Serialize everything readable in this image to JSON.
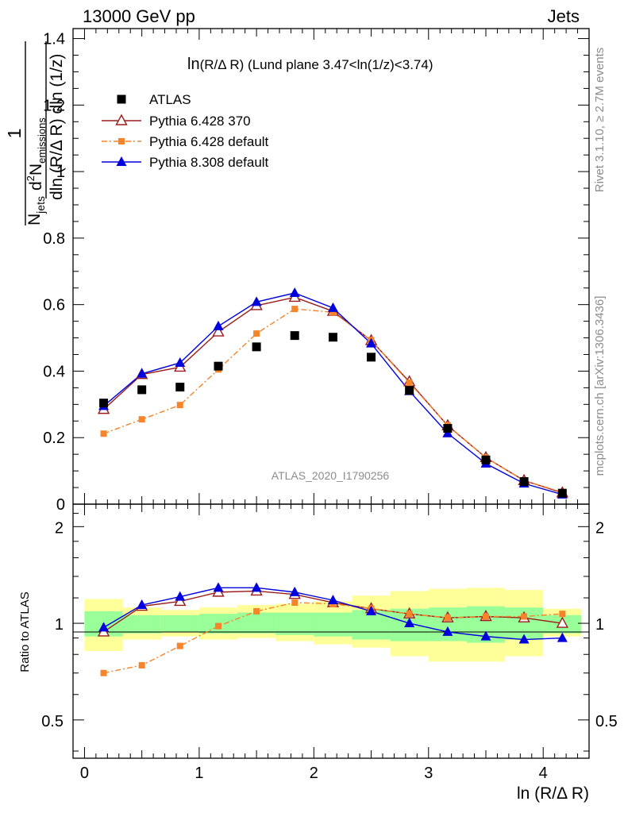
{
  "header": {
    "left": "13000 GeV pp",
    "right": "Jets"
  },
  "watermark": {
    "analysis": "ATLAS_2020_I1790256",
    "rivet": "Rivet 3.1.10, ≥ 2.7M events",
    "mcplots": "mcplots.cern.ch [arXiv:1306.3436]"
  },
  "chart_data": {
    "type": "scatter",
    "title": "ln(R/Δ R) (Lund plane 3.47<ln(1/z)<3.74)",
    "title_main": "ln",
    "title_rest": "(R/Δ R) (Lund plane 3.47<ln(1/z)<3.74)",
    "xlabel": "ln (R/Δ R)",
    "ylabel": "1/N_jets d²N_emissions/dln(R/Δ R) dln(1/z)",
    "ylabel_parts": {
      "one": "1",
      "njets_base": "N",
      "njets_sub": "jets",
      "d2": "d",
      "two": "2",
      "nemis": "N",
      "nemis_sub": "emissions",
      "denom_rest": "dln (R/Δ R) dln (1/z)"
    },
    "ratio_ylabel": "Ratio to ATLAS",
    "xlim": [
      -0.1,
      4.4
    ],
    "ylim": [
      0,
      1.43
    ],
    "ratio_ylim": [
      0.38,
      2.35
    ],
    "x_ticks": [
      {
        "v": 0,
        "label": "0"
      },
      {
        "v": 1,
        "label": "1"
      },
      {
        "v": 2,
        "label": "2"
      },
      {
        "v": 3,
        "label": "3"
      },
      {
        "v": 4,
        "label": "4"
      }
    ],
    "y_ticks": [
      {
        "v": 0,
        "label": "0"
      },
      {
        "v": 0.2,
        "label": "0.2"
      },
      {
        "v": 0.4,
        "label": "0.4"
      },
      {
        "v": 0.6,
        "label": "0.6"
      },
      {
        "v": 0.8,
        "label": "0.8"
      },
      {
        "v": 1.0,
        "label": "1"
      },
      {
        "v": 1.2,
        "label": "1.2"
      },
      {
        "v": 1.4,
        "label": "1.4"
      }
    ],
    "ratio_ticks": [
      {
        "v": 0.5,
        "label": "0.5"
      },
      {
        "v": 1,
        "label": "1"
      },
      {
        "v": 2,
        "label": "2"
      }
    ],
    "bin_edges": [
      0,
      0.333,
      0.667,
      1.0,
      1.333,
      1.667,
      2.0,
      2.333,
      2.667,
      3.0,
      3.333,
      3.667,
      4.0,
      4.333
    ],
    "x": [
      0.167,
      0.5,
      0.833,
      1.167,
      1.5,
      1.833,
      2.167,
      2.5,
      2.833,
      3.167,
      3.5,
      3.833,
      4.167
    ],
    "band_inner": [
      [
        0.91,
        1.09
      ],
      [
        0.93,
        1.06
      ],
      [
        0.94,
        1.06
      ],
      [
        0.93,
        1.07
      ],
      [
        0.93,
        1.08
      ],
      [
        0.92,
        1.08
      ],
      [
        0.91,
        1.08
      ],
      [
        0.89,
        1.1
      ],
      [
        0.88,
        1.11
      ],
      [
        0.88,
        1.12
      ],
      [
        0.87,
        1.13
      ],
      [
        0.89,
        1.12
      ],
      [
        0.93,
        1.06
      ]
    ],
    "band_outer": [
      [
        0.82,
        1.19
      ],
      [
        0.89,
        1.12
      ],
      [
        0.91,
        1.1
      ],
      [
        0.89,
        1.12
      ],
      [
        0.9,
        1.14
      ],
      [
        0.88,
        1.15
      ],
      [
        0.86,
        1.17
      ],
      [
        0.84,
        1.22
      ],
      [
        0.79,
        1.26
      ],
      [
        0.76,
        1.28
      ],
      [
        0.76,
        1.29
      ],
      [
        0.79,
        1.27
      ],
      [
        0.91,
        1.11
      ]
    ],
    "series": [
      {
        "name": "ATLAS",
        "color": "#000000",
        "marker": "square",
        "line": "none",
        "values": [
          0.304,
          0.344,
          0.352,
          0.415,
          0.473,
          0.507,
          0.502,
          0.442,
          0.342,
          0.228,
          0.133,
          0.068,
          0.033
        ],
        "ratio": [
          1,
          1,
          1,
          1,
          1,
          1,
          1,
          1,
          1,
          1,
          1,
          1,
          1
        ]
      },
      {
        "name": "Pythia 6.428 370",
        "color": "#9b1b1b",
        "marker": "triangle-open",
        "line": "solid",
        "values": [
          0.285,
          0.39,
          0.412,
          0.518,
          0.597,
          0.622,
          0.58,
          0.492,
          0.368,
          0.236,
          0.14,
          0.071,
          0.034
        ],
        "ratio": [
          0.94,
          1.13,
          1.17,
          1.25,
          1.26,
          1.23,
          1.16,
          1.11,
          1.07,
          1.04,
          1.05,
          1.04,
          1.0
        ]
      },
      {
        "name": "Pythia 6.428 default",
        "color": "#f5842b",
        "marker": "square-small",
        "line": "dashdot",
        "values": [
          0.212,
          0.255,
          0.298,
          0.405,
          0.513,
          0.587,
          0.577,
          0.493,
          0.365,
          0.237,
          0.14,
          0.071,
          0.036
        ],
        "ratio": [
          0.7,
          0.74,
          0.85,
          0.98,
          1.09,
          1.16,
          1.15,
          1.11,
          1.07,
          1.04,
          1.05,
          1.05,
          1.07
        ]
      },
      {
        "name": "Pythia 8.308 default",
        "color": "#0000dd",
        "marker": "triangle",
        "line": "solid",
        "values": [
          0.295,
          0.392,
          0.425,
          0.535,
          0.608,
          0.635,
          0.59,
          0.483,
          0.34,
          0.213,
          0.122,
          0.062,
          0.029
        ],
        "ratio": [
          0.97,
          1.14,
          1.21,
          1.29,
          1.29,
          1.25,
          1.18,
          1.09,
          1.0,
          0.94,
          0.91,
          0.89,
          0.9
        ]
      }
    ],
    "legend": "top-left"
  }
}
